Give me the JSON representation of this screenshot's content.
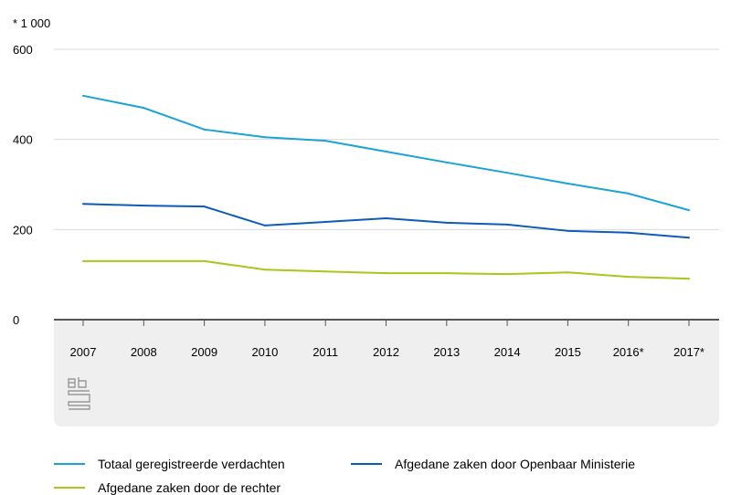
{
  "chart_data": {
    "type": "line",
    "unit_label": "* 1 000",
    "categories": [
      "2007",
      "2008",
      "2009",
      "2010",
      "2011",
      "2012",
      "2013",
      "2014",
      "2015",
      "2016*",
      "2017*"
    ],
    "ylim": [
      0,
      600
    ],
    "yticks": [
      "0",
      "200",
      "400",
      "600"
    ],
    "grid": true,
    "legend_position": "bottom",
    "series": [
      {
        "name": "Totaal geregistreerde verdachten",
        "color": "#1aa3d6",
        "values": [
          497,
          470,
          422,
          405,
          397,
          373,
          349,
          326,
          302,
          280,
          243
        ]
      },
      {
        "name": "Afgedane zaken door Openbaar Ministerie",
        "color": "#0d5bb8",
        "values": [
          257,
          253,
          251,
          209,
          217,
          225,
          215,
          211,
          197,
          193,
          182
        ]
      },
      {
        "name": "Afgedane zaken door de rechter",
        "color": "#a5c81a",
        "values": [
          130,
          130,
          130,
          111,
          107,
          103,
          103,
          101,
          105,
          95,
          91
        ]
      }
    ]
  }
}
